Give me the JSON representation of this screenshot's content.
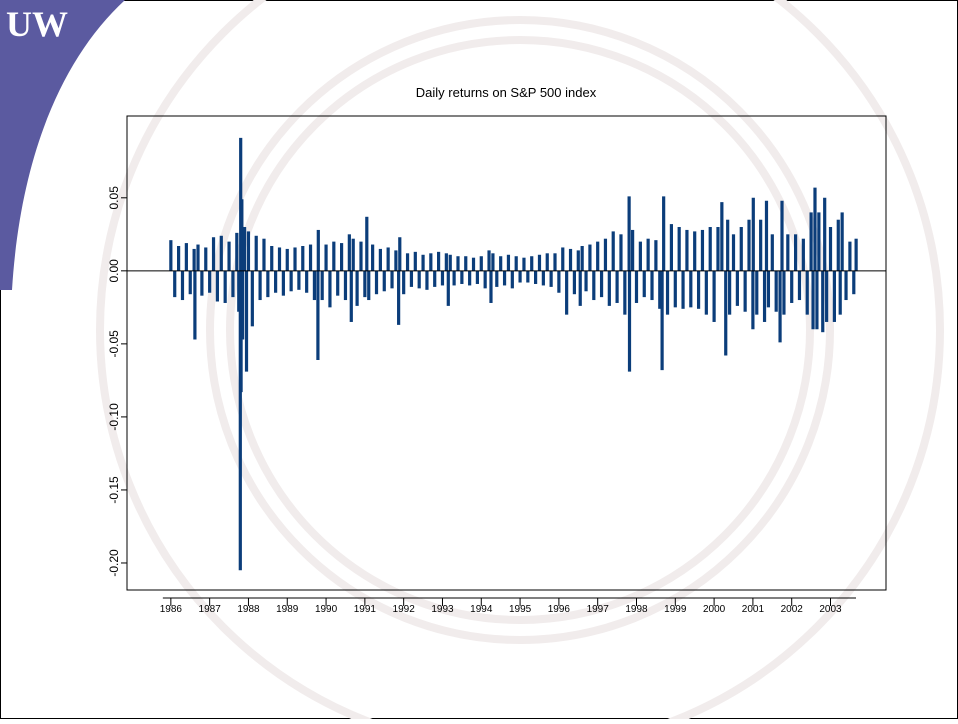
{
  "logo": "UW",
  "chart_data": {
    "type": "spike",
    "title": "Daily returns on S&P 500 index",
    "color": "#0b3d7a",
    "x": [
      1986.0,
      1986.1,
      1986.2,
      1986.3,
      1986.4,
      1986.5,
      1986.6,
      1986.62,
      1986.7,
      1986.8,
      1986.9,
      1987.0,
      1987.1,
      1987.2,
      1987.3,
      1987.4,
      1987.5,
      1987.6,
      1987.7,
      1987.75,
      1987.79,
      1987.8,
      1987.81,
      1987.83,
      1987.85,
      1987.9,
      1987.95,
      1988.0,
      1988.1,
      1988.2,
      1988.3,
      1988.4,
      1988.5,
      1988.6,
      1988.7,
      1988.8,
      1988.9,
      1989.0,
      1989.1,
      1989.2,
      1989.3,
      1989.4,
      1989.5,
      1989.6,
      1989.7,
      1989.79,
      1989.8,
      1989.9,
      1990.0,
      1990.1,
      1990.2,
      1990.3,
      1990.4,
      1990.5,
      1990.6,
      1990.65,
      1990.7,
      1990.8,
      1990.9,
      1991.0,
      1991.05,
      1991.1,
      1991.2,
      1991.3,
      1991.4,
      1991.5,
      1991.6,
      1991.7,
      1991.8,
      1991.87,
      1991.9,
      1992.0,
      1992.1,
      1992.2,
      1992.3,
      1992.4,
      1992.5,
      1992.6,
      1992.7,
      1992.8,
      1992.9,
      1993.0,
      1993.1,
      1993.15,
      1993.2,
      1993.3,
      1993.4,
      1993.5,
      1993.6,
      1993.7,
      1993.8,
      1993.9,
      1994.0,
      1994.1,
      1994.2,
      1994.25,
      1994.3,
      1994.4,
      1994.5,
      1994.6,
      1994.7,
      1994.8,
      1994.9,
      1995.0,
      1995.1,
      1995.2,
      1995.3,
      1995.4,
      1995.5,
      1995.6,
      1995.7,
      1995.8,
      1995.9,
      1996.0,
      1996.1,
      1996.2,
      1996.3,
      1996.4,
      1996.5,
      1996.55,
      1996.6,
      1996.7,
      1996.8,
      1996.9,
      1997.0,
      1997.1,
      1997.2,
      1997.3,
      1997.4,
      1997.5,
      1997.6,
      1997.7,
      1997.81,
      1997.82,
      1997.9,
      1998.0,
      1998.1,
      1998.2,
      1998.3,
      1998.4,
      1998.5,
      1998.6,
      1998.66,
      1998.7,
      1998.8,
      1998.9,
      1999.0,
      1999.1,
      1999.2,
      1999.3,
      1999.4,
      1999.5,
      1999.6,
      1999.7,
      1999.8,
      1999.9,
      2000.0,
      2000.1,
      2000.2,
      2000.3,
      2000.35,
      2000.4,
      2000.5,
      2000.6,
      2000.7,
      2000.8,
      2000.9,
      2001.0,
      2001.01,
      2001.1,
      2001.2,
      2001.3,
      2001.35,
      2001.4,
      2001.5,
      2001.6,
      2001.7,
      2001.75,
      2001.8,
      2001.9,
      2002.0,
      2002.1,
      2002.2,
      2002.3,
      2002.4,
      2002.5,
      2002.55,
      2002.6,
      2002.65,
      2002.7,
      2002.8,
      2002.85,
      2002.9,
      2003.0,
      2003.1,
      2003.2,
      2003.25,
      2003.3,
      2003.4,
      2003.5,
      2003.6,
      2003.66
    ],
    "values": [
      0.021,
      -0.018,
      0.017,
      -0.02,
      0.019,
      -0.016,
      0.015,
      -0.047,
      0.018,
      -0.017,
      0.016,
      -0.015,
      0.023,
      -0.021,
      0.024,
      -0.022,
      0.02,
      -0.018,
      0.026,
      -0.028,
      -0.205,
      0.091,
      -0.083,
      0.049,
      -0.047,
      0.03,
      -0.069,
      0.027,
      -0.038,
      0.024,
      -0.02,
      0.022,
      -0.018,
      0.017,
      -0.015,
      0.016,
      -0.017,
      0.015,
      -0.014,
      0.016,
      -0.013,
      0.017,
      -0.015,
      0.018,
      -0.02,
      -0.061,
      0.028,
      -0.02,
      0.018,
      -0.025,
      0.02,
      -0.017,
      0.019,
      -0.02,
      0.025,
      -0.035,
      0.022,
      -0.024,
      0.02,
      -0.018,
      0.037,
      -0.02,
      0.018,
      -0.016,
      0.015,
      -0.014,
      0.016,
      -0.012,
      0.014,
      -0.037,
      0.023,
      -0.016,
      0.012,
      -0.011,
      0.013,
      -0.012,
      0.011,
      -0.013,
      0.012,
      -0.011,
      0.013,
      -0.01,
      0.012,
      -0.024,
      0.011,
      -0.01,
      0.01,
      -0.009,
      0.01,
      -0.01,
      0.009,
      -0.009,
      0.01,
      -0.012,
      0.014,
      -0.022,
      0.012,
      -0.011,
      0.01,
      -0.01,
      0.011,
      -0.012,
      0.01,
      -0.008,
      0.009,
      -0.008,
      0.01,
      -0.009,
      0.011,
      -0.01,
      0.012,
      -0.011,
      0.012,
      -0.015,
      0.016,
      -0.03,
      0.015,
      -0.016,
      0.014,
      -0.024,
      0.017,
      -0.014,
      0.018,
      -0.02,
      0.02,
      -0.018,
      0.022,
      -0.024,
      0.027,
      -0.022,
      0.025,
      -0.03,
      0.051,
      -0.069,
      0.028,
      -0.022,
      0.02,
      -0.018,
      0.022,
      -0.02,
      0.021,
      -0.026,
      -0.068,
      0.051,
      -0.03,
      0.032,
      -0.025,
      0.03,
      -0.026,
      0.028,
      -0.025,
      0.027,
      -0.026,
      0.028,
      -0.03,
      0.03,
      -0.035,
      0.03,
      0.047,
      -0.058,
      0.035,
      -0.03,
      0.025,
      -0.024,
      0.03,
      -0.028,
      0.035,
      -0.04,
      0.05,
      -0.03,
      0.035,
      -0.035,
      0.048,
      -0.025,
      0.025,
      -0.028,
      -0.049,
      0.048,
      -0.03,
      0.025,
      -0.022,
      0.025,
      -0.02,
      0.022,
      -0.03,
      0.04,
      -0.04,
      0.057,
      -0.04,
      0.04,
      -0.042,
      0.05,
      -0.035,
      0.03,
      -0.035,
      0.035,
      -0.03,
      0.04,
      -0.02,
      0.02,
      -0.016,
      0.022
    ],
    "xlim": [
      1984.87,
      2004.43
    ],
    "ylim": [
      -0.2185,
      0.106
    ],
    "xticks": [
      1986,
      1987,
      1988,
      1989,
      1990,
      1991,
      1992,
      1993,
      1994,
      1995,
      1996,
      1997,
      1998,
      1999,
      2000,
      2001,
      2002,
      2003
    ],
    "yticks": [
      {
        "value": -0.2,
        "label": "-0.20"
      },
      {
        "value": -0.15,
        "label": "-0.15"
      },
      {
        "value": -0.1,
        "label": "-0.10"
      },
      {
        "value": -0.05,
        "label": "-0.05"
      },
      {
        "value": 0,
        "label": "0.00"
      },
      {
        "value": 0.05,
        "label": "0.05"
      }
    ]
  }
}
